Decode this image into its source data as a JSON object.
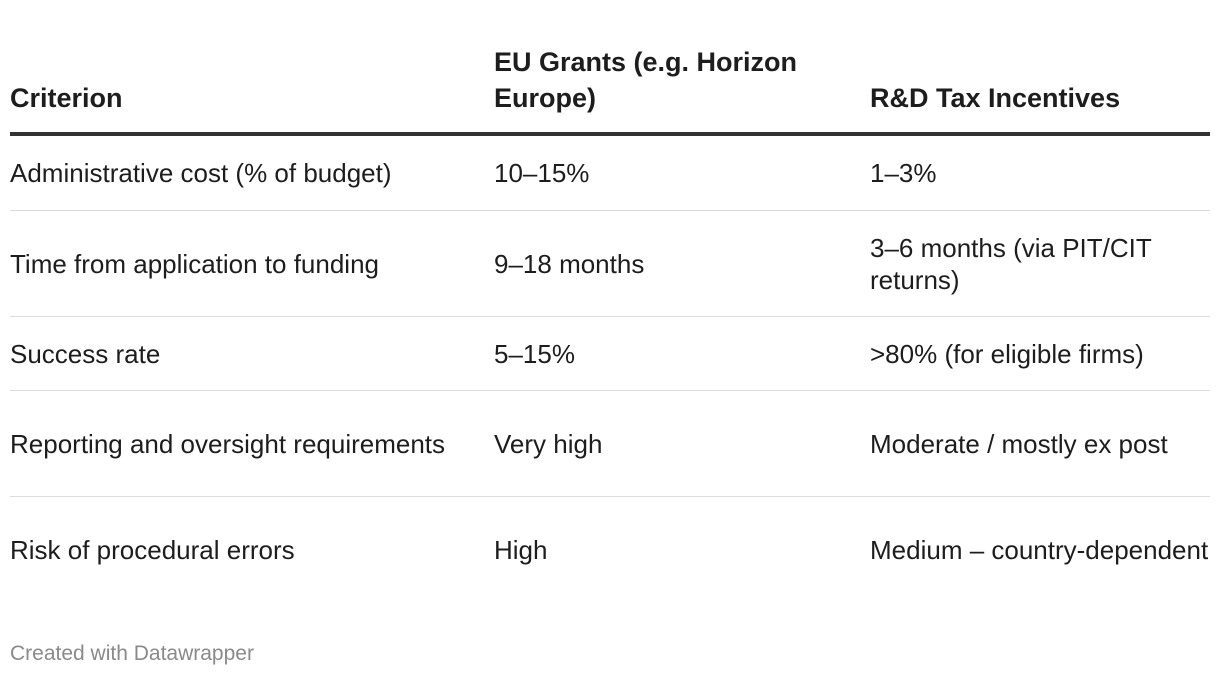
{
  "chart_data": {
    "type": "table",
    "columns": [
      "Criterion",
      "EU Grants (e.g. Horizon Europe)",
      "R&D Tax Incentives"
    ],
    "rows": [
      [
        "Administrative cost (% of budget)",
        "10–15%",
        "1–3%"
      ],
      [
        "Time from application to funding",
        "9–18 months",
        "3–6 months (via PIT/CIT returns)"
      ],
      [
        "Success rate",
        "5–15%",
        ">80% (for eligible firms)"
      ],
      [
        "Reporting and oversight requirements",
        "Very high",
        "Moderate / mostly ex post"
      ],
      [
        "Risk of procedural errors",
        "High",
        "Medium – country-dependent"
      ]
    ],
    "header_line_color": "#333333",
    "row_line_color": "#dddddd"
  },
  "footer": {
    "credit": "Created with Datawrapper"
  }
}
